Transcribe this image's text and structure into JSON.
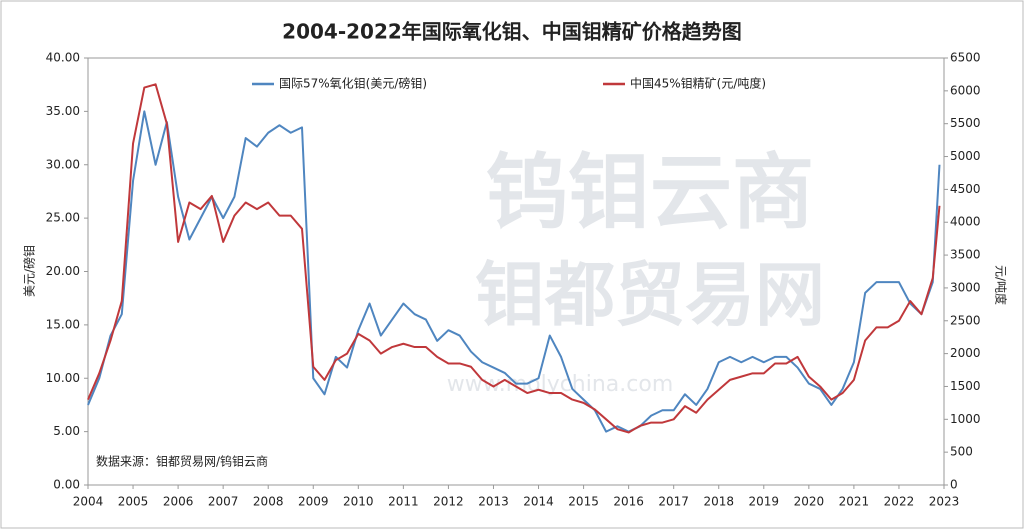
{
  "chart_data": {
    "type": "line",
    "title": "2004-2022年国际氧化钼、中国钼精矿价格趋势图",
    "y_label": "美元/磅钼",
    "y2_label": "元/吨度",
    "source_note": "数据来源：钼都贸易网/钨钼云商",
    "watermarks": [
      "钨钼云商",
      "钼都贸易网",
      "www.molychina.com"
    ],
    "x": [
      2004.0,
      2004.25,
      2004.5,
      2004.75,
      2005.0,
      2005.25,
      2005.5,
      2005.75,
      2006.0,
      2006.25,
      2006.5,
      2006.75,
      2007.0,
      2007.25,
      2007.5,
      2007.75,
      2008.0,
      2008.25,
      2008.5,
      2008.75,
      2009.0,
      2009.25,
      2009.5,
      2009.75,
      2010.0,
      2010.25,
      2010.5,
      2010.75,
      2011.0,
      2011.25,
      2011.5,
      2011.75,
      2012.0,
      2012.25,
      2012.5,
      2012.75,
      2013.0,
      2013.25,
      2013.5,
      2013.75,
      2014.0,
      2014.25,
      2014.5,
      2014.75,
      2015.0,
      2015.25,
      2015.5,
      2015.75,
      2016.0,
      2016.25,
      2016.5,
      2016.75,
      2017.0,
      2017.25,
      2017.5,
      2017.75,
      2018.0,
      2018.25,
      2018.5,
      2018.75,
      2019.0,
      2019.25,
      2019.5,
      2019.75,
      2020.0,
      2020.25,
      2020.5,
      2020.75,
      2021.0,
      2021.25,
      2021.5,
      2021.75,
      2022.0,
      2022.25,
      2022.5,
      2022.75,
      2022.9
    ],
    "series": [
      {
        "name": "国际57%氧化钼(美元/磅钼)",
        "color": "#4f86c0",
        "axis": "y",
        "values": [
          7.5,
          10,
          14,
          16,
          28.5,
          35,
          30,
          34,
          27,
          23,
          25,
          27,
          25,
          27,
          32.5,
          31.7,
          33,
          33.7,
          33,
          33.5,
          10,
          8.5,
          12,
          11,
          14.5,
          17,
          14,
          15.5,
          17,
          16,
          15.5,
          13.5,
          14.5,
          14,
          12.5,
          11.5,
          11,
          10.5,
          9.5,
          9.5,
          10,
          14,
          12,
          9,
          8,
          7,
          5,
          5.5,
          5,
          5.5,
          6.5,
          7,
          7,
          8.5,
          7.5,
          9,
          11.5,
          12,
          11.5,
          12,
          11.5,
          12,
          12,
          11,
          9.5,
          9,
          7.5,
          9,
          11.5,
          18,
          19,
          19,
          19,
          17,
          16,
          19,
          30
        ]
      },
      {
        "name": "中国45%钼精矿(元/吨度)",
        "color": "#c0383b",
        "axis": "y2",
        "values": [
          1300,
          1700,
          2200,
          2800,
          5200,
          6050,
          6100,
          5500,
          3700,
          4300,
          4200,
          4400,
          3700,
          4100,
          4300,
          4200,
          4300,
          4100,
          4100,
          3900,
          1800,
          1600,
          1900,
          2000,
          2300,
          2200,
          2000,
          2100,
          2150,
          2100,
          2100,
          1950,
          1850,
          1850,
          1800,
          1600,
          1500,
          1600,
          1500,
          1400,
          1450,
          1400,
          1400,
          1300,
          1250,
          1150,
          1000,
          850,
          800,
          900,
          950,
          950,
          1000,
          1200,
          1100,
          1300,
          1450,
          1600,
          1650,
          1700,
          1700,
          1850,
          1850,
          1950,
          1650,
          1500,
          1300,
          1400,
          1600,
          2200,
          2400,
          2400,
          2500,
          2800,
          2600,
          3150,
          4250
        ]
      }
    ],
    "xlim": [
      2004,
      2023
    ],
    "xticks": [
      2004,
      2005,
      2006,
      2007,
      2008,
      2009,
      2010,
      2011,
      2012,
      2013,
      2014,
      2015,
      2016,
      2017,
      2018,
      2019,
      2020,
      2021,
      2022,
      2023
    ],
    "ylim": [
      0,
      40
    ],
    "yticks": [
      {
        "value": 0,
        "label": "0.00"
      },
      {
        "value": 5,
        "label": "5.00"
      },
      {
        "value": 10,
        "label": "10.00"
      },
      {
        "value": 15,
        "label": "15.00"
      },
      {
        "value": 20,
        "label": "20.00"
      },
      {
        "value": 25,
        "label": "25.00"
      },
      {
        "value": 30,
        "label": "30.00"
      },
      {
        "value": 35,
        "label": "35.00"
      },
      {
        "value": 40,
        "label": "40.00"
      }
    ],
    "y2lim": [
      0,
      6500
    ],
    "y2ticks": [
      0,
      500,
      1000,
      1500,
      2000,
      2500,
      3000,
      3500,
      4000,
      4500,
      5000,
      5500,
      6000,
      6500
    ],
    "grid": false
  }
}
